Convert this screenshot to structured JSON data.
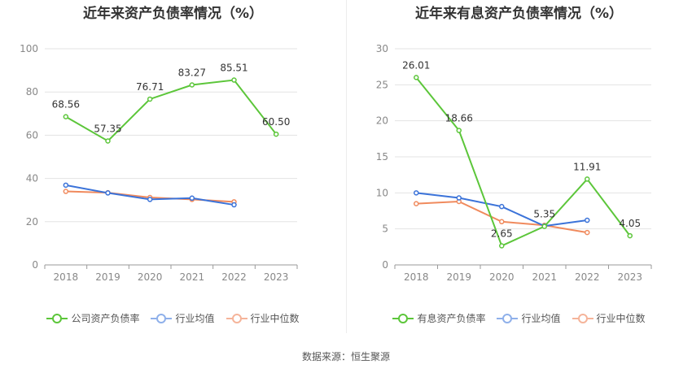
{
  "chart_data": [
    {
      "type": "line",
      "title": "近年来资产负债率情况（%）",
      "categories": [
        "2018",
        "2019",
        "2020",
        "2021",
        "2022",
        "2023"
      ],
      "ylim": [
        0,
        100
      ],
      "yticks": [
        0,
        20,
        40,
        60,
        80,
        100
      ],
      "grid": true,
      "legend_position": "bottom",
      "series": [
        {
          "name": "公司资产负债率",
          "color": "#5cc63a",
          "values": [
            68.56,
            57.35,
            76.71,
            83.27,
            85.51,
            60.5
          ],
          "labels": [
            "68.56",
            "57.35",
            "76.71",
            "83.27",
            "85.51",
            "60.50"
          ]
        },
        {
          "name": "行业均值",
          "color": "#3b73d9",
          "values": [
            36.9,
            33.3,
            30.3,
            30.9,
            27.8,
            null
          ]
        },
        {
          "name": "行业中位数",
          "color": "#f08a5d",
          "values": [
            34.0,
            33.4,
            31.2,
            30.3,
            29.2,
            null
          ]
        }
      ]
    },
    {
      "type": "line",
      "title": "近年来有息资产负债率情况（%）",
      "categories": [
        "2018",
        "2019",
        "2020",
        "2021",
        "2022",
        "2023"
      ],
      "ylim": [
        0,
        30
      ],
      "yticks": [
        0,
        5,
        10,
        15,
        20,
        25,
        30
      ],
      "grid": true,
      "legend_position": "bottom",
      "series": [
        {
          "name": "有息资产负债率",
          "color": "#5cc63a",
          "values": [
            26.01,
            18.66,
            2.65,
            5.35,
            11.91,
            4.05
          ],
          "labels": [
            "26.01",
            "18.66",
            "2.65",
            "5.35",
            "11.91",
            "4.05"
          ]
        },
        {
          "name": "行业均值",
          "color": "#3b73d9",
          "values": [
            10.0,
            9.3,
            8.1,
            5.4,
            6.2,
            null
          ]
        },
        {
          "name": "行业中位数",
          "color": "#f08a5d",
          "values": [
            8.5,
            8.8,
            6.0,
            5.5,
            4.5,
            null
          ]
        }
      ]
    }
  ],
  "source_text": "数据来源：恒生聚源"
}
